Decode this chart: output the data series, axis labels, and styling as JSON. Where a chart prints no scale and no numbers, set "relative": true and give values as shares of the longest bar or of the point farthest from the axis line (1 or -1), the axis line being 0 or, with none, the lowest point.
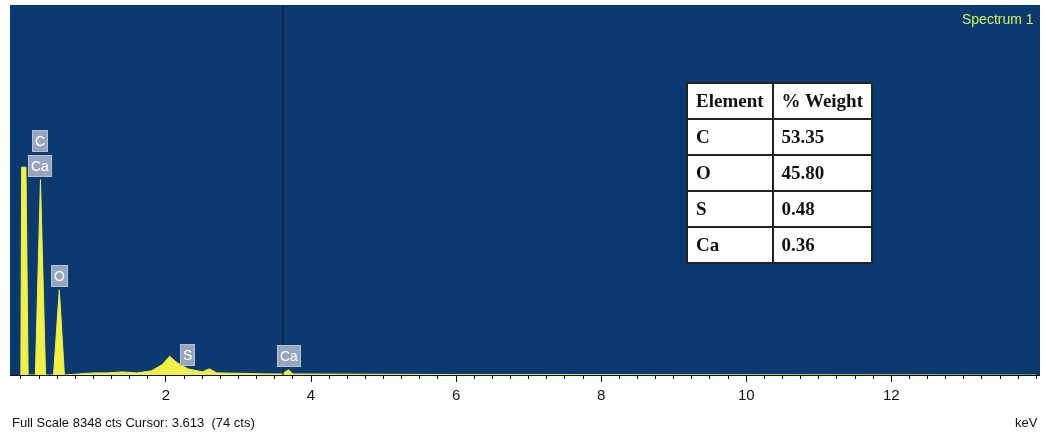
{
  "chart_data": [
    {
      "type": "area",
      "title": "Spectrum 1",
      "xlabel": "keV",
      "relative": true,
      "color": "#f0f046",
      "x": [
        0,
        0.01,
        0.07,
        0.1,
        0.2,
        0.27,
        0.34,
        0.45,
        0.53,
        0.6,
        0.8,
        1.0,
        1.2,
        1.4,
        1.6,
        1.8,
        1.95,
        2.05,
        2.15,
        2.3,
        2.5,
        2.6,
        2.7,
        3.0,
        3.4,
        3.6,
        3.69,
        3.75,
        4.5,
        6,
        10,
        14
      ],
      "values": [
        0,
        1.0,
        1.0,
        0,
        0,
        0.94,
        0,
        0,
        0.41,
        0,
        0.005,
        0.01,
        0.01,
        0.015,
        0.01,
        0.02,
        0.05,
        0.09,
        0.06,
        0.03,
        0.015,
        0.03,
        0.01,
        0.008,
        0.005,
        0.005,
        0.025,
        0.005,
        0.004,
        0.002,
        0.001,
        0
      ],
      "xlim": [
        -0.15,
        14.05
      ],
      "xticks": [
        2,
        4,
        6,
        8,
        10,
        12
      ],
      "ref_lines": [
        {
          "axis": "x",
          "value": 3.613,
          "color": "#0b1e3a"
        }
      ],
      "annotations": [
        {
          "text": "Ca",
          "x": 0.27,
          "y": 0.94
        },
        {
          "text": "C",
          "x": 0.27,
          "y": 0.94
        },
        {
          "text": "O",
          "x": 0.53,
          "y": 0.41
        },
        {
          "text": "S",
          "x": 2.3,
          "y": 0.03
        },
        {
          "text": "Ca",
          "x": 3.69,
          "y": 0.025
        },
        "Full Scale 8348 cts Cursor: 3.613  (74 cts)"
      ]
    },
    {
      "type": "other",
      "xlabel": "Element",
      "ylabel": "% Weight",
      "categories": [
        "C",
        "O",
        "S",
        "Ca"
      ],
      "value_labels": [
        "53.35",
        "45.80",
        "0.48",
        "0.36"
      ]
    }
  ]
}
